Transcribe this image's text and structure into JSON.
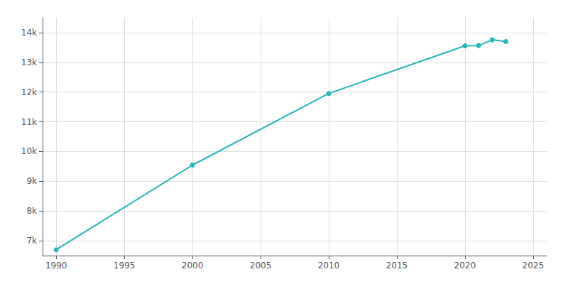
{
  "chart_data": {
    "type": "line",
    "x": [
      1990,
      2000,
      2010,
      2020,
      2021,
      2022,
      2023
    ],
    "values": [
      6699,
      9545,
      11952,
      13557,
      13565,
      13757,
      13698
    ],
    "color": "#2ab5b5",
    "marker": "circle",
    "xlim": [
      1989,
      2026
    ],
    "ylim": [
      6500,
      14500
    ],
    "xticks": [
      1990,
      1995,
      2000,
      2005,
      2010,
      2015,
      2020,
      2025
    ],
    "yticks": [
      {
        "value": 7000,
        "label": "7k"
      },
      {
        "value": 8000,
        "label": "8k"
      },
      {
        "value": 9000,
        "label": "9k"
      },
      {
        "value": 10000,
        "label": "10k"
      },
      {
        "value": 11000,
        "label": "11k"
      },
      {
        "value": 12000,
        "label": "12k"
      },
      {
        "value": 13000,
        "label": "13k"
      },
      {
        "value": 14000,
        "label": "14k"
      }
    ],
    "grid": true
  }
}
